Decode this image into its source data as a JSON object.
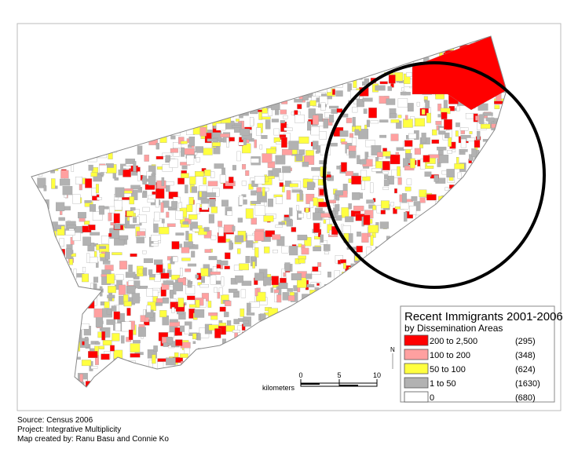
{
  "legend": {
    "title": "Recent Immigrants 2001-2006",
    "subtitle": "by Dissemination Areas",
    "items": [
      {
        "range": "200 to 2,500",
        "count": "(295)",
        "color": "#ff0000"
      },
      {
        "range": "100 to   200",
        "count": "(348)",
        "color": "#ffa0a0"
      },
      {
        "range": " 50 to   100",
        "count": "(624)",
        "color": "#ffff40"
      },
      {
        "range": "  1 to    50",
        "count": "(1630)",
        "color": "#b2b2b2"
      },
      {
        "range": "  0",
        "count": "(680)",
        "color": "#ffffff"
      }
    ]
  },
  "scale_bar": {
    "unit": "kilometers",
    "labels": [
      "0",
      "5",
      "10"
    ]
  },
  "north_arrow": "N",
  "footer": {
    "source": "Source: Census 2006",
    "project": "Project: Integrative Multiplicity",
    "credit": "Map created by: Ranu Basu and Connie Ko"
  }
}
